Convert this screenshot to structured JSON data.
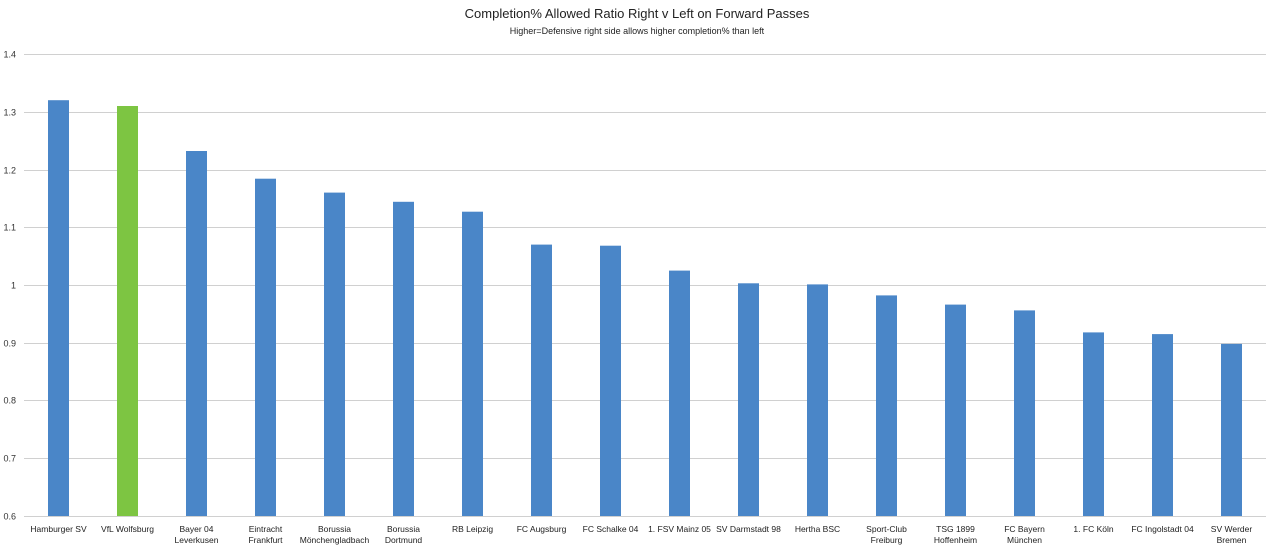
{
  "chart_data": {
    "type": "bar",
    "title": "Completion% Allowed Ratio Right v Left on Forward Passes",
    "subtitle": "Higher=Defensive right side allows higher completion% than left",
    "xlabel": "",
    "ylabel": "",
    "ylim": [
      0.6,
      1.4
    ],
    "yticks": [
      "0.6",
      "0.7",
      "0.8",
      "0.9",
      "1",
      "1.1",
      "1.2",
      "1.3",
      "1.4"
    ],
    "grid": true,
    "colors": {
      "default": "#4a86c8",
      "highlight": "#7dc542"
    },
    "highlight_index": 1,
    "categories": [
      [
        "Hamburger SV"
      ],
      [
        "VfL Wolfsburg"
      ],
      [
        "Bayer 04",
        "Leverkusen"
      ],
      [
        "Eintracht",
        "Frankfurt"
      ],
      [
        "Borussia",
        "Mönchengladbach"
      ],
      [
        "Borussia",
        "Dortmund"
      ],
      [
        "RB Leipzig"
      ],
      [
        "FC Augsburg"
      ],
      [
        "FC Schalke 04"
      ],
      [
        "1. FSV Mainz 05"
      ],
      [
        "SV Darmstadt 98"
      ],
      [
        "Hertha BSC"
      ],
      [
        "Sport-Club",
        "Freiburg"
      ],
      [
        "TSG 1899",
        "Hoffenheim"
      ],
      [
        "FC Bayern",
        "München"
      ],
      [
        "1. FC Köln"
      ],
      [
        "FC Ingolstadt 04"
      ],
      [
        "SV Werder",
        "Bremen"
      ]
    ],
    "values": [
      1.32,
      1.31,
      1.232,
      1.184,
      1.16,
      1.144,
      1.127,
      1.07,
      1.068,
      1.025,
      1.003,
      1.001,
      0.982,
      0.966,
      0.956,
      0.918,
      0.915,
      0.898
    ]
  }
}
